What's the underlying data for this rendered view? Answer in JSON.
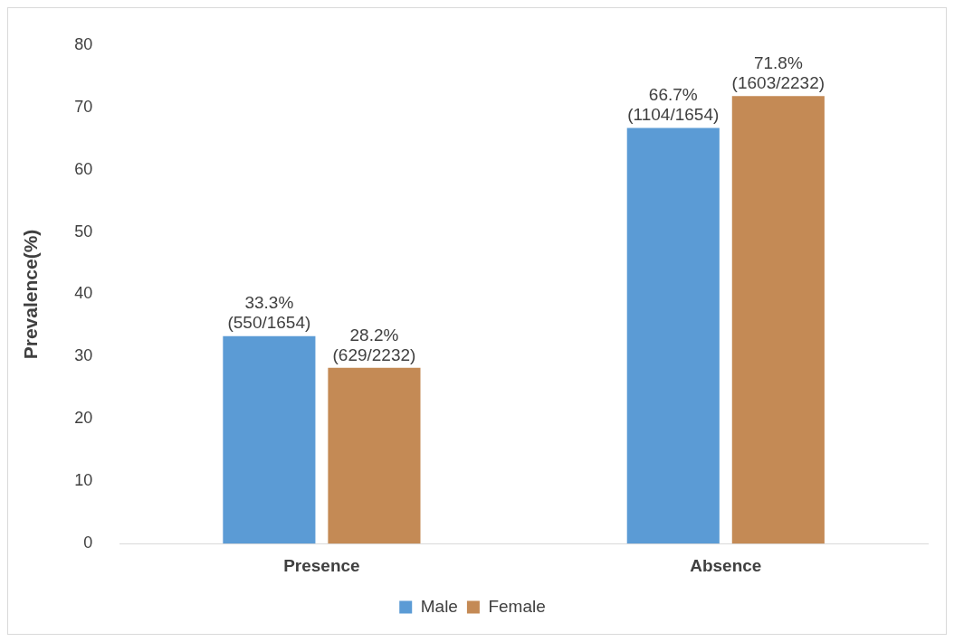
{
  "chart_data": {
    "type": "bar",
    "ylabel": "Prevalence(%)",
    "categories": [
      "Presence",
      "Absence"
    ],
    "series": [
      {
        "name": "Male",
        "color": "#5b9bd5",
        "values": [
          33.3,
          66.7
        ],
        "value_labels": [
          "33.3%\n(550/1654)",
          "66.7%\n(1104/1654)"
        ]
      },
      {
        "name": "Female",
        "color": "#c48a55",
        "values": [
          28.2,
          71.8
        ],
        "value_labels": [
          "28.2%\n(629/2232)",
          "71.8%\n(1603/2232)"
        ]
      }
    ],
    "ylim": [
      0,
      80
    ],
    "yticks": [
      0,
      10,
      20,
      30,
      40,
      50,
      60,
      70,
      80
    ],
    "grid": false,
    "legend": "bottom"
  }
}
